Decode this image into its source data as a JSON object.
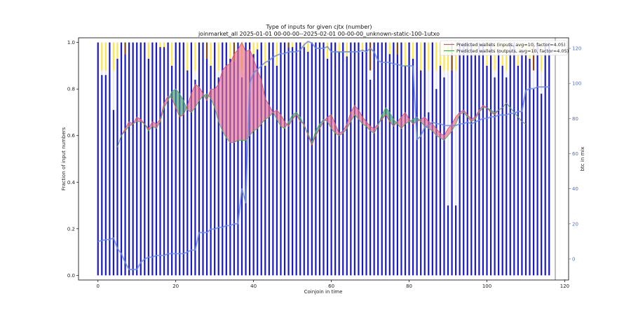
{
  "chart_data": {
    "type": "bar",
    "title": "Type of inputs for given cjtx (number)",
    "subtitle": "joinmarket_all 2025-01-01 00-00-00--2025-02-01 00-00-00_unknown-static-100-1utxo",
    "xlabel": "Coinjoin in time",
    "ylabel": "Fraction of input numbers",
    "y2label": "btc in mix",
    "xlim": [
      -5,
      121
    ],
    "ylim": [
      -0.02,
      1.02
    ],
    "y2lim": [
      -12,
      126
    ],
    "x_ticks": [
      0,
      20,
      40,
      60,
      80,
      100,
      120
    ],
    "y_ticks": [
      0.0,
      0.2,
      0.4,
      0.6,
      0.8,
      1.0
    ],
    "y2_ticks": [
      0,
      20,
      40,
      60,
      80,
      100,
      120
    ],
    "colors": {
      "bar_main": "#1a1acc",
      "bar_light": "#e6e6fa",
      "bar_yellow": "#ffe44d",
      "bar_brown": "#8b4513",
      "inputs_line": "#e8505b",
      "inputs_fill": "#e8708a",
      "outputs_line": "#4caf50",
      "outputs_fill": "#4c9f6f",
      "btc_line": "#6b8de3",
      "right_axis": "#4a6fd8"
    },
    "bars_blue_fraction": [
      1.0,
      0.86,
      0.86,
      1.0,
      0.71,
      0.93,
      1.0,
      0.95,
      1.0,
      1.0,
      1.0,
      1.0,
      1.0,
      0.93,
      1.0,
      1.0,
      0.98,
      0.98,
      1.0,
      0.9,
      1.0,
      1.0,
      1.0,
      0.88,
      1.0,
      0.84,
      1.0,
      1.0,
      0.93,
      0.9,
      1.0,
      0.85,
      1.0,
      1.0,
      0.93,
      0.92,
      1.0,
      0.85,
      1.0,
      1.0,
      0.95,
      0.97,
      1.0,
      0.9,
      1.0,
      1.0,
      0.9,
      1.0,
      1.0,
      0.98,
      0.98,
      1.0,
      1.0,
      0.98,
      0.96,
      1.0,
      1.0,
      1.0,
      1.0,
      0.93,
      1.0,
      1.0,
      0.96,
      1.0,
      0.94,
      1.0,
      1.0,
      1.0,
      0.96,
      1.0,
      0.84,
      1.0,
      1.0,
      1.0,
      1.0,
      0.95,
      1.0,
      0.95,
      1.0,
      0.9,
      1.0,
      0.93,
      1.0,
      0.88,
      1.0,
      0.7,
      1.0,
      0.8,
      0.9,
      0.85,
      0.3,
      0.88,
      0.3,
      1.0,
      1.0,
      1.0,
      1.0,
      0.95,
      1.0,
      1.0,
      0.9,
      1.0,
      0.85,
      0.97,
      0.9,
      0.85,
      1.0,
      1.0,
      0.9,
      0.97,
      0.95,
      0.93,
      0.8,
      1.0,
      0.78,
      1.0,
      1.0
    ],
    "series": [
      {
        "name": "Predicted wallets (inputs, avg=10, factor=4.05)",
        "x_start": 5,
        "values": [
          0.55,
          0.6,
          0.63,
          0.66,
          0.65,
          0.68,
          0.67,
          0.65,
          0.63,
          0.66,
          0.65,
          0.67,
          0.74,
          0.77,
          0.76,
          0.72,
          0.68,
          0.69,
          0.73,
          0.78,
          0.82,
          0.81,
          0.78,
          0.75,
          0.8,
          0.8,
          0.82,
          0.88,
          0.9,
          0.91,
          0.95,
          0.97,
          1.0,
          0.96,
          0.97,
          0.93,
          0.88,
          0.84,
          0.76,
          0.73,
          0.7,
          0.71,
          0.69,
          0.66,
          0.64,
          0.67,
          0.69,
          0.66,
          0.65,
          0.6,
          0.56,
          0.6,
          0.63,
          0.66,
          0.68,
          0.69,
          0.65,
          0.61,
          0.62,
          0.65,
          0.7,
          0.73,
          0.71,
          0.68,
          0.66,
          0.64,
          0.63,
          0.65,
          0.67,
          0.69,
          0.66,
          0.64,
          0.66,
          0.68,
          0.7,
          0.67,
          0.65,
          0.66,
          0.67,
          0.68,
          0.66,
          0.65,
          0.63,
          0.61,
          0.6,
          0.63,
          0.65,
          0.68,
          0.7,
          0.71,
          0.69,
          0.67,
          0.68,
          0.71,
          0.73,
          0.72,
          0.7,
          0.69,
          0.71,
          0.72,
          0.74,
          0.72,
          0.7,
          0.68,
          0.66,
          0.65
        ]
      },
      {
        "name": "Predicted wallets (outputs, avg=10, factor=4.05)",
        "x_start": 5,
        "values": [
          0.55,
          0.6,
          0.62,
          0.64,
          0.65,
          0.66,
          0.66,
          0.65,
          0.62,
          0.64,
          0.63,
          0.66,
          0.72,
          0.75,
          0.79,
          0.8,
          0.78,
          0.75,
          0.71,
          0.7,
          0.72,
          0.75,
          0.77,
          0.78,
          0.76,
          0.72,
          0.66,
          0.62,
          0.59,
          0.57,
          0.57,
          0.58,
          0.58,
          0.58,
          0.6,
          0.62,
          0.63,
          0.65,
          0.67,
          0.68,
          0.7,
          0.67,
          0.64,
          0.63,
          0.66,
          0.69,
          0.7,
          0.68,
          0.64,
          0.61,
          0.57,
          0.62,
          0.65,
          0.67,
          0.66,
          0.63,
          0.61,
          0.6,
          0.61,
          0.63,
          0.66,
          0.69,
          0.67,
          0.65,
          0.64,
          0.62,
          0.61,
          0.64,
          0.69,
          0.72,
          0.7,
          0.67,
          0.65,
          0.63,
          0.65,
          0.66,
          0.67,
          0.68,
          0.66,
          0.64,
          0.63,
          0.62,
          0.6,
          0.59,
          0.58,
          0.6,
          0.62,
          0.65,
          0.69,
          0.7,
          0.68,
          0.66,
          0.67,
          0.7,
          0.72,
          0.72,
          0.71,
          0.7,
          0.71,
          0.72,
          0.74,
          0.72,
          0.7,
          0.68,
          0.66,
          0.65
        ]
      },
      {
        "name": "btc in mix",
        "axis": "right",
        "x": [
          0,
          2,
          3,
          4,
          5,
          6,
          7,
          8,
          9,
          10,
          11,
          12,
          13,
          14,
          15,
          16,
          17,
          18,
          19,
          20,
          21,
          22,
          23,
          24,
          25,
          26,
          27,
          28,
          29,
          30,
          31,
          32,
          33,
          34,
          35,
          36,
          37,
          38,
          39,
          40,
          41,
          42,
          43,
          44,
          45,
          46,
          47,
          48,
          49,
          50,
          51,
          52,
          53,
          54,
          55,
          56,
          57,
          58,
          59,
          60,
          61,
          62,
          63,
          64,
          65,
          66,
          67,
          68,
          69,
          70,
          71,
          72,
          73,
          74,
          75,
          76,
          77,
          78,
          79,
          80,
          81,
          82,
          83,
          84,
          85,
          86,
          87,
          88,
          89,
          90,
          91,
          92,
          93,
          94,
          95,
          96,
          97,
          98,
          99,
          100,
          101,
          102,
          103,
          104,
          105,
          106,
          107,
          108,
          109,
          110,
          111,
          112,
          113,
          114,
          115,
          116
        ],
        "values": [
          10,
          11,
          11,
          12,
          6,
          3,
          -2,
          -6,
          -6,
          -6,
          -2,
          0,
          1,
          1,
          2,
          2,
          2,
          3,
          3,
          3,
          3,
          3,
          4,
          5,
          5,
          15,
          15,
          15,
          17,
          17,
          18,
          18,
          19,
          19,
          20,
          20,
          40,
          32,
          100,
          106,
          108,
          110,
          112,
          113,
          115,
          116,
          117,
          117,
          118,
          118,
          118,
          119,
          122,
          124,
          123,
          120,
          120,
          120,
          121,
          118,
          118,
          118,
          118,
          118,
          118,
          118,
          118,
          119,
          118,
          120,
          118,
          113,
          112,
          112,
          112,
          111,
          111,
          110,
          110,
          110,
          110,
          68,
          70,
          75,
          76,
          78,
          77,
          77,
          76,
          76,
          76,
          76,
          77,
          77,
          78,
          77,
          78,
          79,
          80,
          80,
          81,
          81,
          82,
          82,
          82,
          83,
          83,
          84,
          84,
          96,
          97,
          97,
          98,
          98,
          98,
          98
        ]
      }
    ],
    "legend_placement": "top-right",
    "grid": false
  }
}
